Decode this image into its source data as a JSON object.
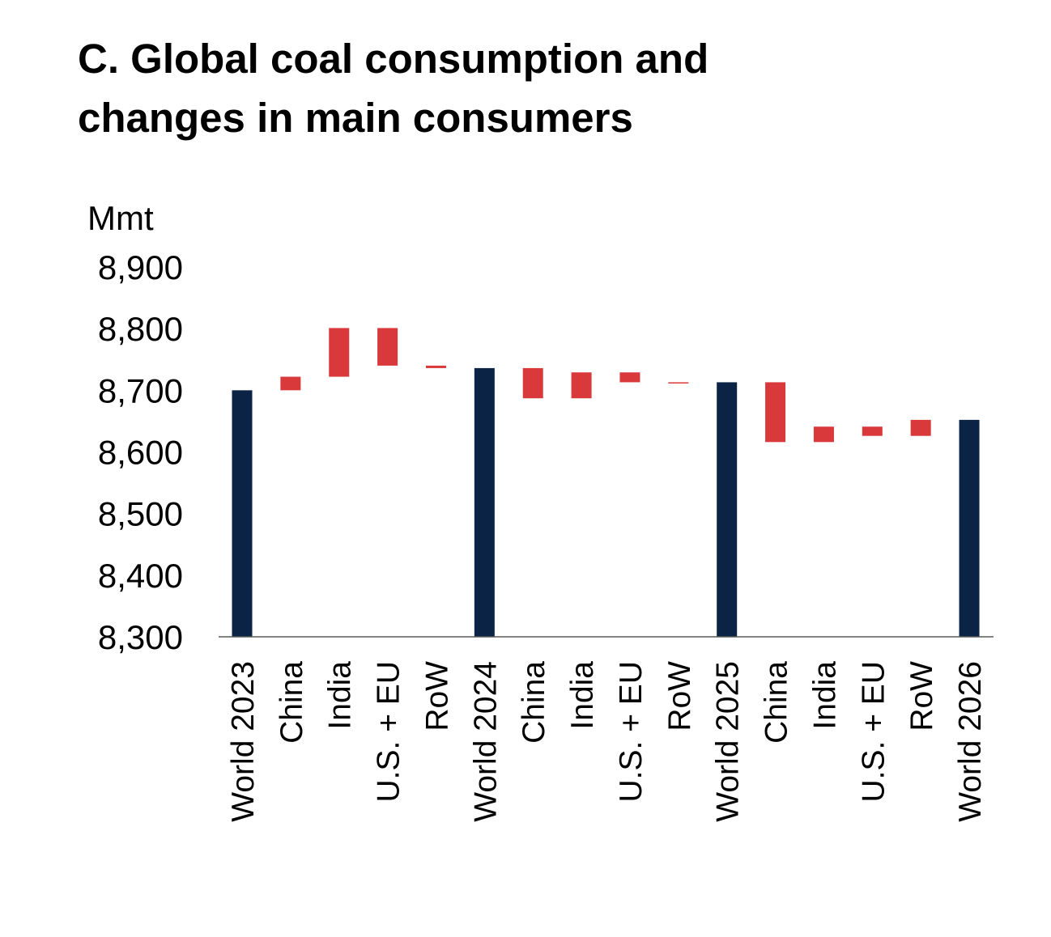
{
  "chart_data": {
    "type": "waterfall",
    "title": "C. Global coal consumption and changes in main consumers",
    "ylabel": "Mmt",
    "ylim": [
      8300,
      8900
    ],
    "yticks": [
      "8,300",
      "8,400",
      "8,500",
      "8,600",
      "8,700",
      "8,800",
      "8,900"
    ],
    "ytick_values": [
      8300,
      8400,
      8500,
      8600,
      8700,
      8800,
      8900
    ],
    "grid": false,
    "colors": {
      "total": "#0b2344",
      "change": "#d9393a",
      "axis": "#595959"
    },
    "bars": [
      {
        "label": "World 2023",
        "kind": "total",
        "value": 8700
      },
      {
        "label": "China",
        "kind": "change",
        "value": 22
      },
      {
        "label": "India",
        "kind": "change",
        "value": 79
      },
      {
        "label": "U.S. + EU",
        "kind": "change",
        "value": -61
      },
      {
        "label": "RoW",
        "kind": "change",
        "value": -4
      },
      {
        "label": "World 2024",
        "kind": "total",
        "value": 8736
      },
      {
        "label": "China",
        "kind": "change",
        "value": -49
      },
      {
        "label": "India",
        "kind": "change",
        "value": 42
      },
      {
        "label": "U.S. + EU",
        "kind": "change",
        "value": -16
      },
      {
        "label": "RoW",
        "kind": "change",
        "value": 0
      },
      {
        "label": "World 2025",
        "kind": "total",
        "value": 8713
      },
      {
        "label": "China",
        "kind": "change",
        "value": -97
      },
      {
        "label": "India",
        "kind": "change",
        "value": 25
      },
      {
        "label": "U.S. + EU",
        "kind": "change",
        "value": -15
      },
      {
        "label": "RoW",
        "kind": "change",
        "value": 26
      },
      {
        "label": "World 2026",
        "kind": "total",
        "value": 8652
      }
    ]
  }
}
